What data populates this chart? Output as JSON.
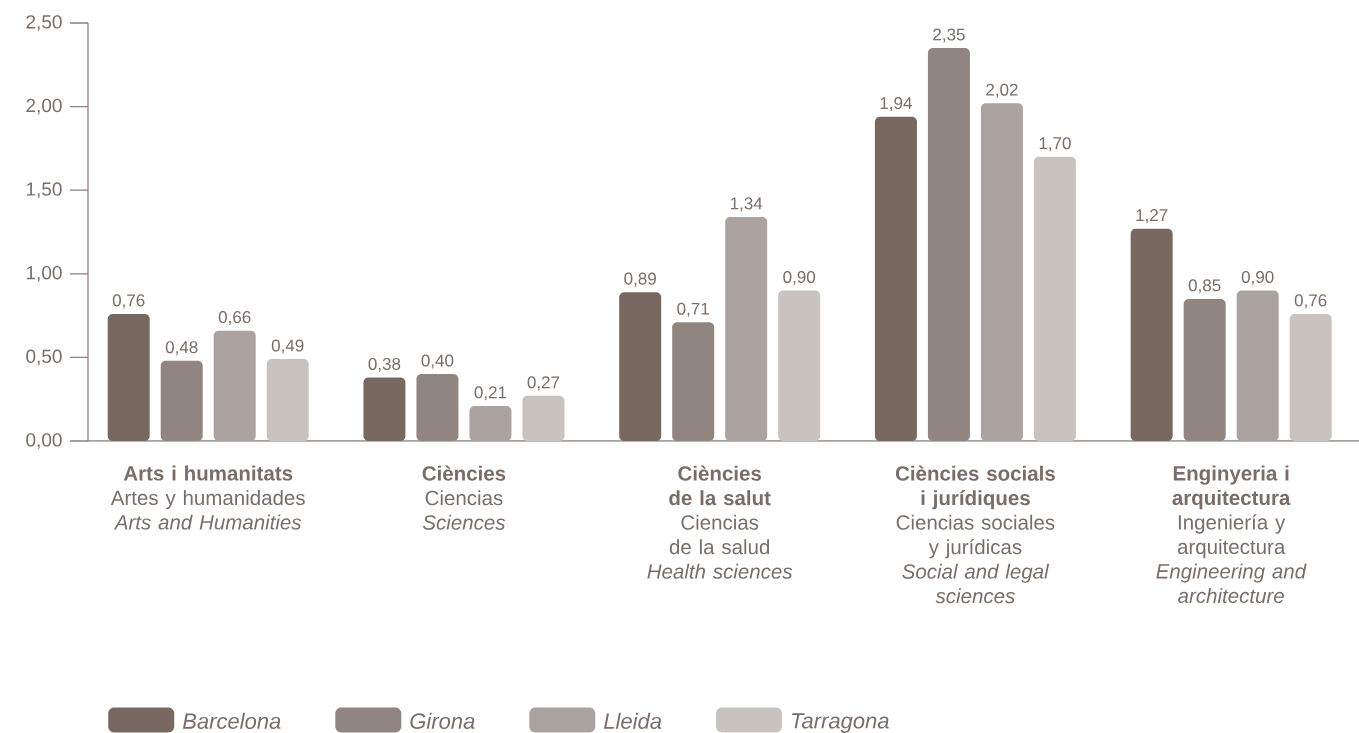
{
  "chart_data": {
    "type": "bar",
    "categories": [
      "**Arts i humanitats**\nArtes y humanidades\n*Arts and Humanities*",
      "**Ciències**\nCiencias\n*Sciences*",
      "**Ciències**\n**de la salut**\nCiencias\nde la salud\n*Health sciences*",
      "**Ciències socials**\n**i jurídiques**\nCiencias sociales\ny jurídicas\n*Social and legal*\n*sciences*",
      "**Enginyeria i**\n**arquitectura**\nIngeniería y\narquitectura\n*Engineering and*\n*architecture*"
    ],
    "series": [
      {
        "name": "Barcelona",
        "color": "#786860",
        "values": [
          0.76,
          0.38,
          0.89,
          1.94,
          1.27
        ],
        "value_labels": [
          "0,76",
          "0,38",
          "0,89",
          "1,94",
          "1,27"
        ]
      },
      {
        "name": "Girona",
        "color": "#91867f",
        "values": [
          0.48,
          0.4,
          0.71,
          2.35,
          0.85
        ],
        "value_labels": [
          "0,48",
          "0,40",
          "0,71",
          "2,35",
          "0,85"
        ]
      },
      {
        "name": "Lleida",
        "color": "#aba39f",
        "values": [
          0.66,
          0.21,
          1.34,
          2.02,
          0.9
        ],
        "value_labels": [
          "0,66",
          "0,21",
          "1,34",
          "2,02",
          "0,90"
        ]
      },
      {
        "name": "Tarragona",
        "color": "#c8c3bf",
        "values": [
          0.49,
          0.27,
          0.9,
          1.7,
          0.76
        ],
        "value_labels": [
          "0,49",
          "0,27",
          "0,90",
          "1,70",
          "0,76"
        ]
      }
    ],
    "ylim": [
      0,
      2.5
    ],
    "yticks": [
      {
        "value": 0,
        "label": "0,00"
      },
      {
        "value": 0.5,
        "label": "0,50"
      },
      {
        "value": 1,
        "label": "1,00"
      },
      {
        "value": 1.5,
        "label": "1,50"
      },
      {
        "value": 2,
        "label": "2,00"
      },
      {
        "value": 2.5,
        "label": "2,50"
      }
    ],
    "legend": "bottom left"
  }
}
